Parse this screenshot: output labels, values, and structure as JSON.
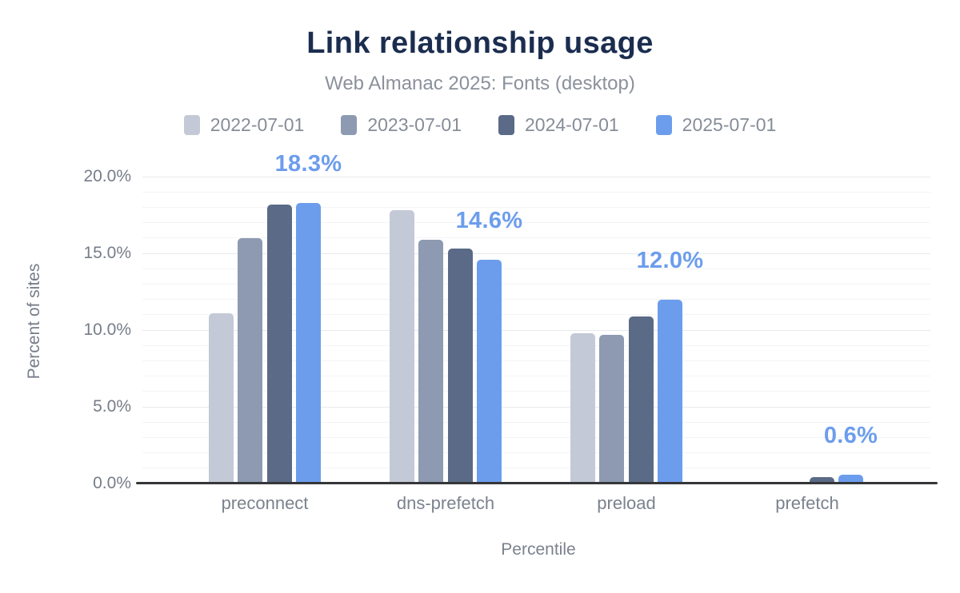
{
  "header": {
    "title": "Link relationship usage",
    "subtitle": "Web Almanac 2025: Fonts (desktop)"
  },
  "axes": {
    "y_title": "Percent of sites",
    "x_title": "Percentile",
    "y_ticks": [
      {
        "value": 20,
        "label": "20.0%"
      },
      {
        "value": 15,
        "label": "15.0%"
      },
      {
        "value": 10,
        "label": "10.0%"
      },
      {
        "value": 5,
        "label": "5.0%"
      },
      {
        "value": 0,
        "label": "0.0%"
      }
    ]
  },
  "palette": {
    "title_text": "#1b2d4f",
    "muted_text": "#868d98",
    "axis_text": "#767d89",
    "accent_label": "#6c9ded",
    "baseline": "#35363a",
    "grid_major": "#e7e9ec",
    "grid_minor": "#f3f4f6"
  },
  "chart_data": {
    "type": "bar",
    "title": "Link relationship usage",
    "subtitle": "Web Almanac 2025: Fonts (desktop)",
    "categories": [
      "preconnect",
      "dns-prefetch",
      "preload",
      "prefetch"
    ],
    "series": [
      {
        "name": "2022-07-01",
        "color": "#c3c9d6",
        "values": [
          11.1,
          17.8,
          9.8,
          0.0
        ]
      },
      {
        "name": "2023-07-01",
        "color": "#8d9ab1",
        "values": [
          16.0,
          15.9,
          9.7,
          0.0
        ]
      },
      {
        "name": "2024-07-01",
        "color": "#5a6a87",
        "values": [
          18.2,
          15.3,
          10.9,
          0.4
        ]
      },
      {
        "name": "2025-07-01",
        "color": "#6c9ded",
        "values": [
          18.3,
          14.6,
          12.0,
          0.6
        ]
      }
    ],
    "data_labels": {
      "series": "2025-07-01",
      "values": [
        "18.3%",
        "14.6%",
        "12.0%",
        "0.6%"
      ]
    },
    "xlabel": "Percentile",
    "ylabel": "Percent of sites",
    "ylim": [
      0,
      20
    ],
    "grid": {
      "major_step": 5,
      "minor_step": 1,
      "enabled": true
    },
    "legend_position": "top"
  }
}
